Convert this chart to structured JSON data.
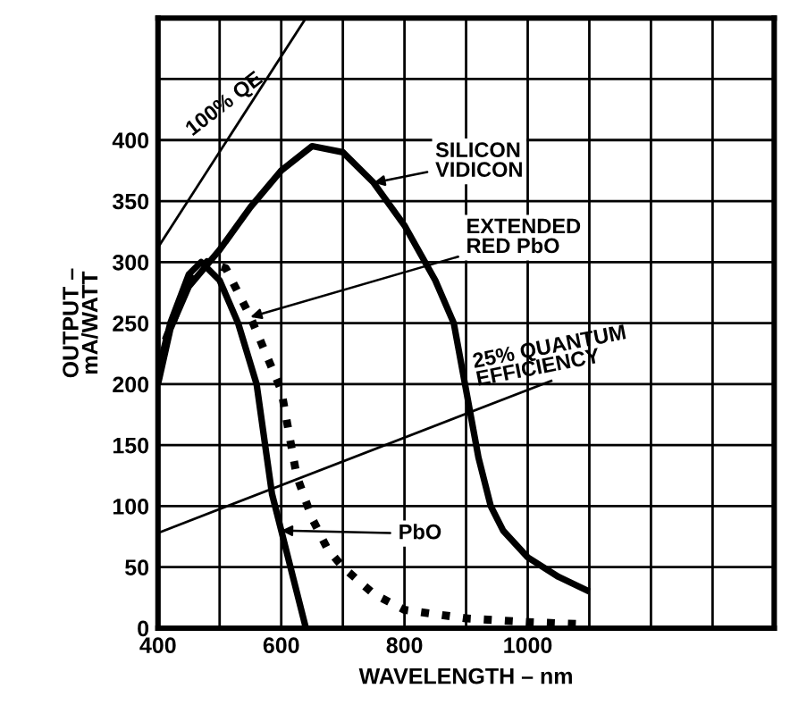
{
  "chart_data": {
    "type": "line",
    "xlabel": "WAVELENGTH – nm",
    "ylabel": "OUTPUT –\nmA/WATT",
    "xlim": [
      400,
      1400
    ],
    "ylim": [
      0,
      500
    ],
    "xticks": [
      400,
      {
        "value": 500,
        "label": null
      },
      600,
      {
        "value": 700,
        "label": null
      },
      800,
      {
        "value": 900,
        "label": null
      },
      1000,
      {
        "value": 1100,
        "label": null
      },
      {
        "value": 1200,
        "label": null
      },
      {
        "value": 1300,
        "label": null
      },
      {
        "value": 1400,
        "label": null
      }
    ],
    "yticks": [
      0,
      50,
      100,
      150,
      200,
      250,
      300,
      350,
      400,
      {
        "value": 450,
        "label": null
      },
      {
        "value": 500,
        "label": null
      }
    ],
    "grid": true,
    "legend": false,
    "marker": "none",
    "series": [
      {
        "name": "SILICON\nVIDICON",
        "color": "#000000",
        "line_style": "solid",
        "x": [
          400,
          420,
          450,
          500,
          550,
          600,
          650,
          700,
          750,
          800,
          850,
          880,
          900,
          920,
          940,
          960,
          1000,
          1050,
          1100
        ],
        "values": [
          200,
          245,
          280,
          310,
          345,
          375,
          395,
          390,
          365,
          330,
          285,
          250,
          195,
          140,
          100,
          80,
          58,
          42,
          30
        ]
      },
      {
        "name": "EXTENDED\nRED PbO",
        "color": "#000000",
        "line_style": "dotted",
        "x": [
          400,
          450,
          480,
          510,
          550,
          600,
          625,
          650,
          675,
          700,
          750,
          800,
          900,
          1000,
          1100
        ],
        "values": [
          220,
          285,
          300,
          295,
          255,
          195,
          125,
          90,
          65,
          50,
          28,
          15,
          8,
          5,
          3
        ]
      },
      {
        "name": "PbO",
        "color": "#000000",
        "line_style": "solid",
        "x": [
          400,
          420,
          450,
          470,
          500,
          530,
          560,
          585,
          600,
          620,
          640
        ],
        "values": [
          210,
          250,
          290,
          300,
          285,
          250,
          200,
          110,
          80,
          40,
          0
        ]
      },
      {
        "name": "100% QE",
        "color": "#000000",
        "line_style": "solid",
        "x": [
          400,
          640
        ],
        "values": [
          312,
          500
        ]
      },
      {
        "name": "25% QUANTUM\nEFFICIENCY",
        "color": "#000000",
        "line_style": "solid",
        "x": [
          400,
          1040
        ],
        "values": [
          78,
          203
        ]
      }
    ]
  }
}
